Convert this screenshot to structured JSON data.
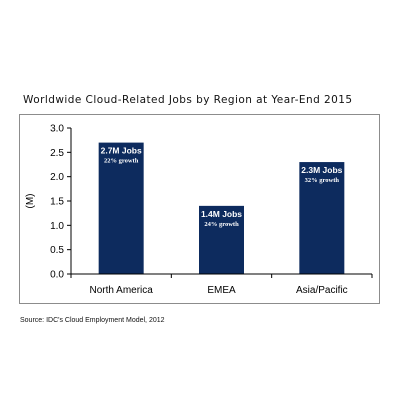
{
  "colors": {
    "bar": "#0d2b5e",
    "bar_label": "#ffffff",
    "axis": "#000000"
  },
  "chart_data": {
    "type": "bar",
    "title": "Worldwide Cloud-Related Jobs by Region at Year-End 2015",
    "categories": [
      "North America",
      "EMEA",
      "Asia/Pacific"
    ],
    "values": [
      2.7,
      1.4,
      2.3
    ],
    "data_labels": [
      {
        "main": "2.7M Jobs",
        "sub": "22% growth"
      },
      {
        "main": "1.4M Jobs",
        "sub": "24% growth"
      },
      {
        "main": "2.3M Jobs",
        "sub": "32% growth"
      }
    ],
    "ylabel": "(M)",
    "xlabel": "",
    "ylim": [
      0,
      3.0
    ],
    "yticks": [
      "0.0",
      "0.5",
      "1.0",
      "1.5",
      "2.0",
      "2.5",
      "3.0"
    ],
    "grid": false,
    "legend": "none"
  },
  "source": "Source: IDC's Cloud Employment Model, 2012"
}
